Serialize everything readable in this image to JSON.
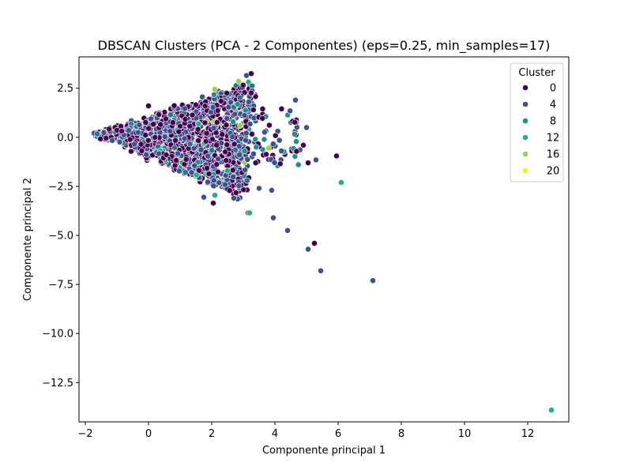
{
  "chart_data": {
    "type": "scatter",
    "title": "DBSCAN Clusters (PCA - 2 Componentes) (eps=0.25, min_samples=17)",
    "xlabel": "Componente principal 1",
    "ylabel": "Componente principal 2",
    "xlim": [
      -2.2,
      13.3
    ],
    "ylim": [
      -14.5,
      4.1
    ],
    "xticks": [
      -2,
      0,
      2,
      4,
      6,
      8,
      10,
      12
    ],
    "yticks": [
      -12.5,
      -10.0,
      -7.5,
      -5.0,
      -2.5,
      0.0,
      2.5
    ],
    "ytick_labels": [
      "−12.5",
      "−10.0",
      "−7.5",
      "−5.0",
      "−2.5",
      "0.0",
      "2.5"
    ],
    "xtick_labels": [
      "−2",
      "0",
      "2",
      "4",
      "6",
      "8",
      "10",
      "12"
    ],
    "grid": false,
    "legend": {
      "title": "Cluster",
      "placement": "top-right",
      "entries": [
        {
          "label": "0",
          "color": "#440154"
        },
        {
          "label": "4",
          "color": "#3b528b"
        },
        {
          "label": "8",
          "color": "#21908d"
        },
        {
          "label": "12",
          "color": "#27ad81"
        },
        {
          "label": "16",
          "color": "#8fd744"
        },
        {
          "label": "20",
          "color": "#fde725"
        }
      ]
    },
    "colors": {
      "c0": "#440154",
      "c2": "#472d7b",
      "c4": "#3b528b",
      "c6": "#2c728e",
      "c8": "#21908d",
      "c12": "#27ad81",
      "c16": "#8fd744",
      "c20": "#fde725"
    },
    "outliers": [
      {
        "x": 12.75,
        "y": -13.9,
        "c": "c12"
      },
      {
        "x": 7.1,
        "y": -7.3,
        "c": "c4"
      },
      {
        "x": 5.45,
        "y": -6.8,
        "c": "c4"
      },
      {
        "x": 5.05,
        "y": -5.7,
        "c": "c4"
      },
      {
        "x": 5.25,
        "y": -5.4,
        "c": "c0"
      },
      {
        "x": 4.4,
        "y": -4.75,
        "c": "c4"
      },
      {
        "x": 3.95,
        "y": -4.1,
        "c": "c4"
      },
      {
        "x": 6.1,
        "y": -2.3,
        "c": "c12"
      },
      {
        "x": 5.95,
        "y": -0.95,
        "c": "c0"
      },
      {
        "x": 5.3,
        "y": -1.15,
        "c": "c4"
      },
      {
        "x": 5.05,
        "y": -1.3,
        "c": "c0"
      },
      {
        "x": 4.9,
        "y": -0.4,
        "c": "c0"
      },
      {
        "x": 4.65,
        "y": 1.9,
        "c": "c4"
      },
      {
        "x": 5.0,
        "y": 0.5,
        "c": "c4"
      },
      {
        "x": 3.15,
        "y": -3.85,
        "c": "c4"
      },
      {
        "x": 3.2,
        "y": -3.85,
        "c": "c12"
      },
      {
        "x": 3.9,
        "y": -2.7,
        "c": "c4"
      },
      {
        "x": 3.5,
        "y": -2.6,
        "c": "c4"
      },
      {
        "x": 2.05,
        "y": -3.35,
        "c": "c0"
      },
      {
        "x": 2.7,
        "y": -3.1,
        "c": "c4"
      },
      {
        "x": 2.5,
        "y": -1.7,
        "c": "c12"
      },
      {
        "x": 2.1,
        "y": -2.95,
        "c": "c12"
      },
      {
        "x": 1.75,
        "y": -3.05,
        "c": "c4"
      },
      {
        "x": 3.8,
        "y": -0.55,
        "c": "c16"
      },
      {
        "x": 3.1,
        "y": 3.15,
        "c": "c4"
      },
      {
        "x": 3.25,
        "y": 3.25,
        "c": "c0"
      },
      {
        "x": 2.85,
        "y": 2.85,
        "c": "c16"
      },
      {
        "x": 2.1,
        "y": 2.45,
        "c": "c16"
      },
      {
        "x": 2.9,
        "y": 0.6,
        "c": "c16"
      },
      {
        "x": 0.0,
        "y": 1.6,
        "c": "c0"
      }
    ],
    "cluster_region": {
      "description": "dense cloud of points in a wedge from (-1.6, 0.1) out to x~4.6, y in [-3, 2.9]",
      "apex": [
        -1.6,
        0.15
      ],
      "upper_edge_end": [
        3.4,
        2.9
      ],
      "lower_edge_end": [
        3.0,
        -3.1
      ],
      "dominant_clusters": [
        "c0",
        "c4"
      ],
      "minor_clusters": [
        "c6",
        "c8",
        "c12",
        "c16"
      ]
    }
  }
}
